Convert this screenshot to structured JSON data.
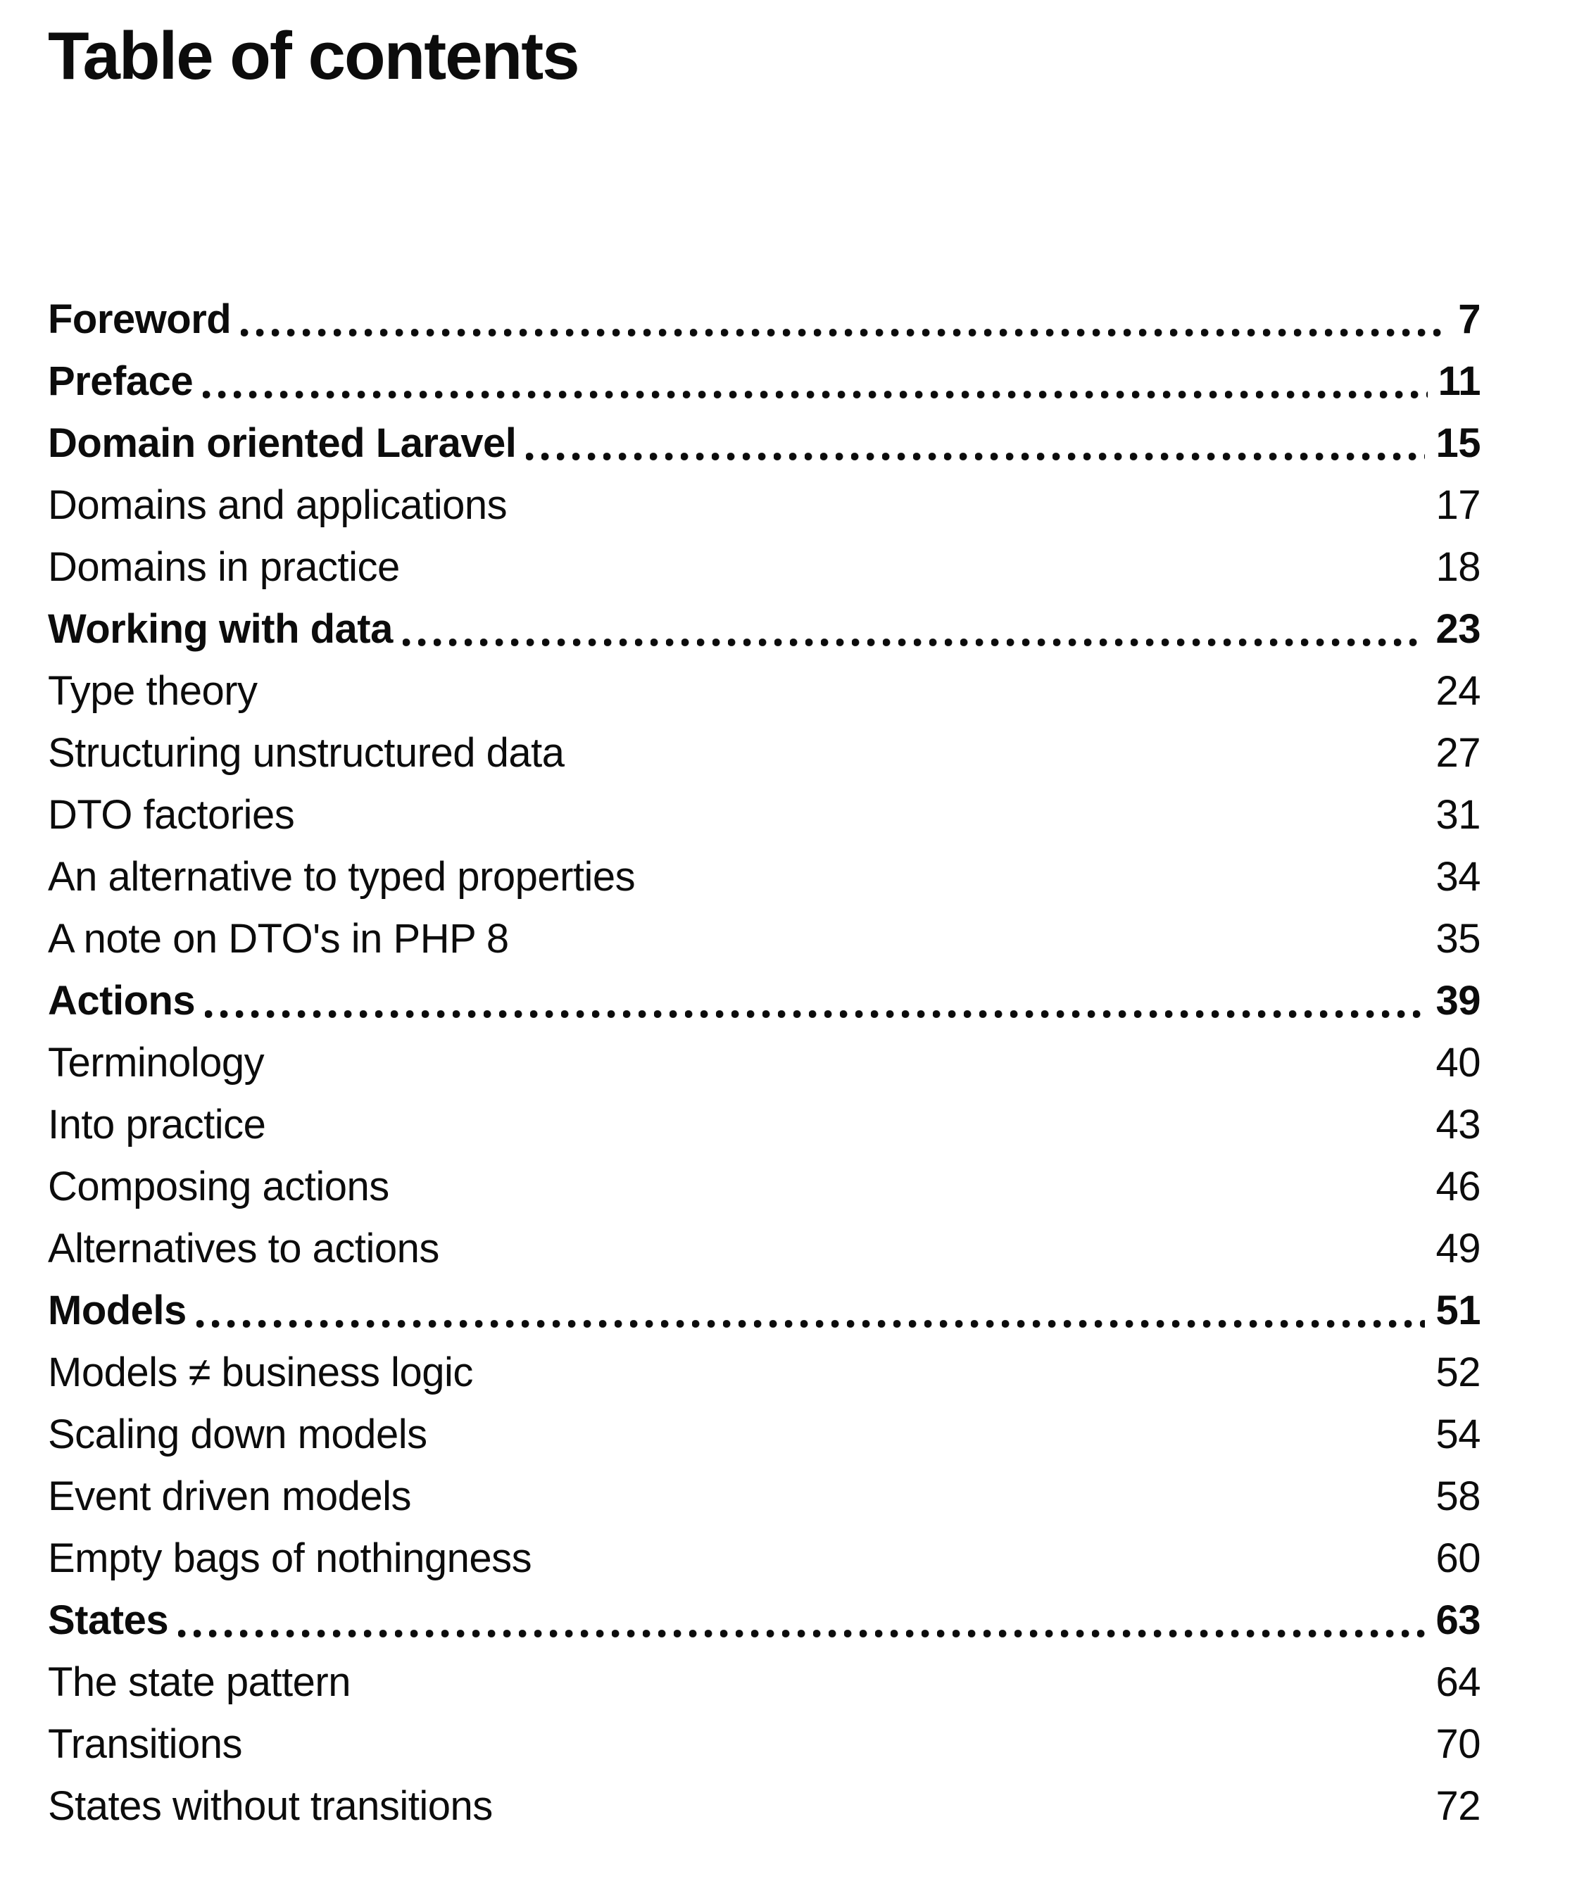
{
  "page": {
    "background": "#ffffff",
    "text_color": "#0c0c0c",
    "title": "Table of contents"
  },
  "toc": {
    "entries": [
      {
        "label": "Foreword",
        "page": "7",
        "bold": true,
        "dots": true
      },
      {
        "label": "Preface",
        "page": "11",
        "bold": true,
        "dots": true
      },
      {
        "label": "Domain oriented Laravel",
        "page": "15",
        "bold": true,
        "dots": true
      },
      {
        "label": "Domains and applications",
        "page": "17",
        "bold": false,
        "dots": false
      },
      {
        "label": "Domains in practice",
        "page": "18",
        "bold": false,
        "dots": false
      },
      {
        "label": "Working with data",
        "page": "23",
        "bold": true,
        "dots": true
      },
      {
        "label": "Type theory",
        "page": "24",
        "bold": false,
        "dots": false
      },
      {
        "label": "Structuring unstructured data",
        "page": "27",
        "bold": false,
        "dots": false
      },
      {
        "label": "DTO factories",
        "page": "31",
        "bold": false,
        "dots": false
      },
      {
        "label": "An alternative to typed properties",
        "page": "34",
        "bold": false,
        "dots": false
      },
      {
        "label": "A note on DTO's in PHP 8",
        "page": "35",
        "bold": false,
        "dots": false
      },
      {
        "label": "Actions",
        "page": "39",
        "bold": true,
        "dots": true
      },
      {
        "label": "Terminology",
        "page": "40",
        "bold": false,
        "dots": false
      },
      {
        "label": "Into practice",
        "page": "43",
        "bold": false,
        "dots": false
      },
      {
        "label": "Composing actions",
        "page": "46",
        "bold": false,
        "dots": false
      },
      {
        "label": "Alternatives to actions",
        "page": "49",
        "bold": false,
        "dots": false
      },
      {
        "label": "Models",
        "page": "51",
        "bold": true,
        "dots": true
      },
      {
        "label": "Models ≠ business logic",
        "page": "52",
        "bold": false,
        "dots": false
      },
      {
        "label": "Scaling down models",
        "page": "54",
        "bold": false,
        "dots": false
      },
      {
        "label": "Event driven models",
        "page": "58",
        "bold": false,
        "dots": false
      },
      {
        "label": "Empty bags of nothingness",
        "page": "60",
        "bold": false,
        "dots": false
      },
      {
        "label": "States",
        "page": "63",
        "bold": true,
        "dots": true
      },
      {
        "label": "The state pattern",
        "page": "64",
        "bold": false,
        "dots": false
      },
      {
        "label": "Transitions",
        "page": "70",
        "bold": false,
        "dots": false
      },
      {
        "label": "States without transitions",
        "page": "72",
        "bold": false,
        "dots": false
      }
    ]
  }
}
